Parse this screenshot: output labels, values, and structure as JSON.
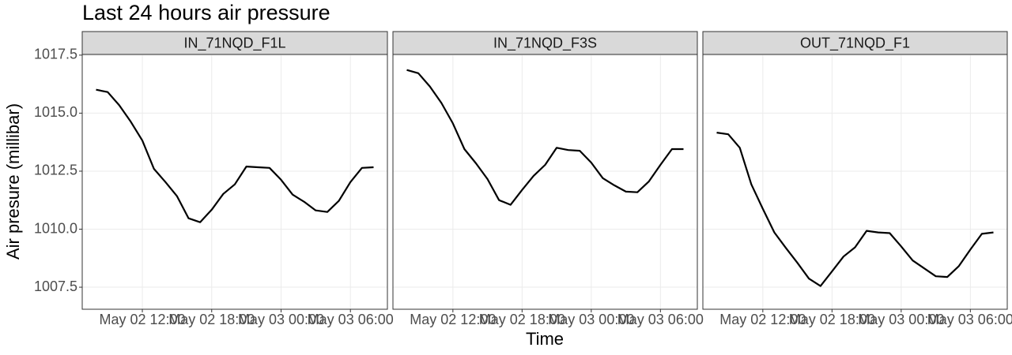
{
  "title": "Last 24 hours air pressure",
  "x_label": "Time",
  "y_label": "Air presure (millibar)",
  "chart_data": [
    {
      "type": "line",
      "title": "IN_71NQD_F1L",
      "color": "#000000",
      "grid": true,
      "x": [
        "May 02 08:00",
        "May 02 09:00",
        "May 02 10:00",
        "May 02 11:00",
        "May 02 12:00",
        "May 02 13:00",
        "May 02 14:00",
        "May 02 15:00",
        "May 02 16:00",
        "May 02 17:00",
        "May 02 18:00",
        "May 02 19:00",
        "May 02 20:00",
        "May 02 21:00",
        "May 02 22:00",
        "May 02 23:00",
        "May 03 00:00",
        "May 03 01:00",
        "May 03 02:00",
        "May 03 03:00",
        "May 03 04:00",
        "May 03 05:00",
        "May 03 06:00",
        "May 03 07:00",
        "May 03 08:00"
      ],
      "values": [
        1016.01,
        1015.91,
        1015.34,
        1014.63,
        1013.82,
        1012.6,
        1012.03,
        1011.42,
        1010.47,
        1010.3,
        1010.84,
        1011.52,
        1011.93,
        1012.7,
        1012.67,
        1012.64,
        1012.13,
        1011.49,
        1011.18,
        1010.81,
        1010.74,
        1011.22,
        1012.03,
        1012.64,
        1012.67
      ],
      "xlim": [
        "May 02 06:48",
        "May 03 09:12"
      ],
      "xticks": [
        "May 02 12:00",
        "May 02 18:00",
        "May 03 00:00",
        "May 03 06:00"
      ],
      "ylim": [
        1006.55,
        1017.53
      ],
      "yticks": [
        1007.5,
        {
          "value": 1010,
          "label": "1010.0"
        },
        1012.5,
        {
          "value": 1015,
          "label": "1015.0"
        },
        1017.5
      ]
    },
    {
      "type": "line",
      "title": "IN_71NQD_F3S",
      "color": "#000000",
      "grid": true,
      "x": [
        "May 02 08:00",
        "May 02 09:00",
        "May 02 10:00",
        "May 02 11:00",
        "May 02 12:00",
        "May 02 13:00",
        "May 02 14:00",
        "May 02 15:00",
        "May 02 16:00",
        "May 02 17:00",
        "May 02 18:00",
        "May 02 19:00",
        "May 02 20:00",
        "May 02 21:00",
        "May 02 22:00",
        "May 02 23:00",
        "May 03 00:00",
        "May 03 01:00",
        "May 03 02:00",
        "May 03 03:00",
        "May 03 04:00",
        "May 03 05:00",
        "May 03 06:00",
        "May 03 07:00",
        "May 03 08:00"
      ],
      "values": [
        1016.86,
        1016.72,
        1016.15,
        1015.44,
        1014.56,
        1013.45,
        1012.84,
        1012.16,
        1011.25,
        1011.05,
        1011.69,
        1012.3,
        1012.77,
        1013.51,
        1013.41,
        1013.38,
        1012.87,
        1012.2,
        1011.89,
        1011.62,
        1011.59,
        1012.06,
        1012.77,
        1013.45,
        1013.45
      ],
      "xlim": [
        "May 02 06:48",
        "May 03 09:12"
      ],
      "xticks": [
        "May 02 12:00",
        "May 02 18:00",
        "May 03 00:00",
        "May 03 06:00"
      ],
      "ylim": [
        1006.55,
        1017.53
      ],
      "yticks": [
        1007.5,
        {
          "value": 1010,
          "label": "1010.0"
        },
        1012.5,
        {
          "value": 1015,
          "label": "1015.0"
        },
        1017.5
      ]
    },
    {
      "type": "line",
      "title": "OUT_71NQD_F1",
      "color": "#000000",
      "grid": true,
      "x": [
        "May 02 08:00",
        "May 02 09:00",
        "May 02 10:00",
        "May 02 11:00",
        "May 02 12:00",
        "May 02 13:00",
        "May 02 14:00",
        "May 02 15:00",
        "May 02 16:00",
        "May 02 17:00",
        "May 02 18:00",
        "May 02 19:00",
        "May 02 20:00",
        "May 02 21:00",
        "May 02 22:00",
        "May 02 23:00",
        "May 03 00:00",
        "May 03 01:00",
        "May 03 02:00",
        "May 03 03:00",
        "May 03 04:00",
        "May 03 05:00",
        "May 03 06:00",
        "May 03 07:00",
        "May 03 08:00"
      ],
      "values": [
        1014.16,
        1014.09,
        1013.51,
        1011.93,
        1010.88,
        1009.86,
        1009.19,
        1008.55,
        1007.87,
        1007.55,
        1008.18,
        1008.82,
        1009.22,
        1009.93,
        1009.86,
        1009.83,
        1009.26,
        1008.65,
        1008.31,
        1007.97,
        1007.94,
        1008.41,
        1009.12,
        1009.8,
        1009.86
      ],
      "xlim": [
        "May 02 06:48",
        "May 03 09:12"
      ],
      "xticks": [
        "May 02 12:00",
        "May 02 18:00",
        "May 03 00:00",
        "May 03 06:00"
      ],
      "ylim": [
        1006.55,
        1017.53
      ],
      "yticks": [
        1007.5,
        {
          "value": 1010,
          "label": "1010.0"
        },
        1012.5,
        {
          "value": 1015,
          "label": "1015.0"
        },
        1017.5
      ]
    }
  ]
}
